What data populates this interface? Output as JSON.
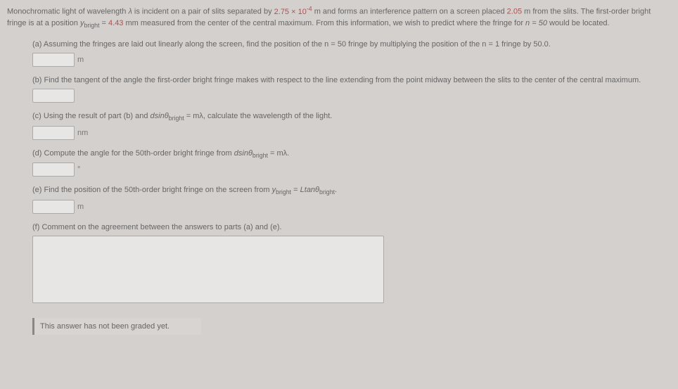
{
  "intro": {
    "line1a": "Monochromatic light of wavelength ",
    "line1b": " is incident on a pair of slits separated by ",
    "val1": "2.75 × 10",
    "exp1": "-4",
    "line1c": " m and forms an interference pattern on a screen placed ",
    "val2": "2.05",
    "line1d": " m from the slits. The first-order bright fringe is at a position ",
    "ysub": "bright",
    "line1e": " = ",
    "val3": "4.43",
    "line1f": " mm measured from the center of the central maximum. From this information, we wish to predict where the fringe for ",
    "nval": "n = 50",
    "line1g": " would be located.",
    "lambda": "λ",
    "yvar": "y"
  },
  "parts": {
    "a": {
      "text": "(a) Assuming the fringes are laid out linearly along the screen, find the position of the n = 50 fringe by multiplying the position of the n = 1 fringe by 50.0.",
      "unit": "m"
    },
    "b": {
      "text": "(b) Find the tangent of the angle the first-order bright fringe makes with respect to the line extending from the point midway between the slits to the center of the central maximum."
    },
    "c": {
      "prefix": "(c) Using the result of part (b) and ",
      "formula": "dsinθ",
      "sub": "bright",
      "middle": " = mλ, calculate the wavelength of the light.",
      "unit": "nm"
    },
    "d": {
      "prefix": "(d) Compute the angle for the 50th-order bright fringe from ",
      "formula": "dsinθ",
      "sub": "bright",
      "suffix": " = mλ.",
      "unit": "°"
    },
    "e": {
      "prefix": "(e) Find the position of the 50th-order bright fringe on the screen from ",
      "yvar": "y",
      "ysub": "bright",
      "middle": " = ",
      "rhs": "Ltanθ",
      "rsub": "bright",
      "suffix": ".",
      "unit": "m"
    },
    "f": {
      "text": "(f) Comment on the agreement between the answers to parts (a) and (e)."
    }
  },
  "graded": "This answer has not been graded yet."
}
